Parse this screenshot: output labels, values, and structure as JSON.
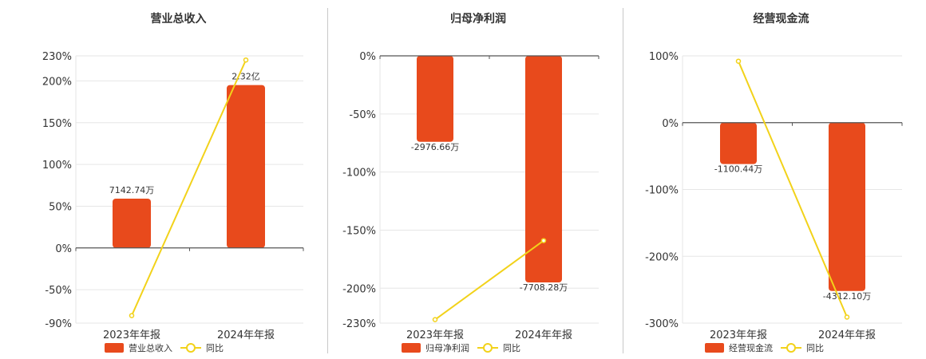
{
  "colors": {
    "bar": "#e84a1c",
    "line": "#f2d21a",
    "axis": "#555555",
    "grid": "#e6e6e6"
  },
  "chart_data": [
    {
      "type": "bar",
      "title": "营业总收入",
      "categories": [
        "2023年年报",
        "2024年年报"
      ],
      "ylim": [
        -90,
        230
      ],
      "yticks": [
        230,
        200,
        150,
        100,
        50,
        0,
        -50,
        -90
      ],
      "ytick_labels": [
        "230%",
        "200%",
        "150%",
        "100%",
        "50%",
        "0%",
        "-50%",
        "-90%"
      ],
      "series": [
        {
          "name": "营业总收入",
          "kind": "bar",
          "values": [
            59,
            195
          ],
          "labels": [
            "7142.74万",
            "2.32亿"
          ]
        },
        {
          "name": "同比",
          "kind": "line",
          "values": [
            -81,
            225
          ]
        }
      ],
      "legend": "bottom"
    },
    {
      "type": "bar",
      "title": "归母净利润",
      "categories": [
        "2023年年报",
        "2024年年报"
      ],
      "ylim": [
        -230,
        0
      ],
      "yticks": [
        0,
        -50,
        -100,
        -150,
        -200,
        -230
      ],
      "ytick_labels": [
        "0%",
        "-50%",
        "-100%",
        "-150%",
        "-200%",
        "-230%"
      ],
      "series": [
        {
          "name": "归母净利润",
          "kind": "bar",
          "values": [
            -74,
            -195
          ],
          "labels": [
            "-2976.66万",
            "-7708.28万"
          ]
        },
        {
          "name": "同比",
          "kind": "line",
          "values": [
            -227,
            -159
          ]
        }
      ],
      "legend": "bottom"
    },
    {
      "type": "bar",
      "title": "经营现金流",
      "categories": [
        "2023年年报",
        "2024年年报"
      ],
      "ylim": [
        -300,
        100
      ],
      "yticks": [
        100,
        0,
        -100,
        -200,
        -300
      ],
      "ytick_labels": [
        "100%",
        "0%",
        "-100%",
        "-200%",
        "-300%"
      ],
      "series": [
        {
          "name": "经营现金流",
          "kind": "bar",
          "values": [
            -62,
            -252
          ],
          "labels": [
            "-1100.44万",
            "-4312.10万"
          ]
        },
        {
          "name": "同比",
          "kind": "line",
          "values": [
            92,
            -291
          ]
        }
      ],
      "legend": "bottom"
    }
  ]
}
